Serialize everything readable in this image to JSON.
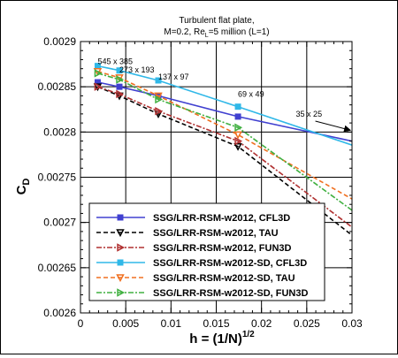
{
  "chart_data": {
    "type": "line",
    "title": "Turbulent flat plate,",
    "subtitle": "M=0.2, Re_L=5 million (L=1)",
    "xlabel": "h = (1/N)^1/2",
    "ylabel": "C_D",
    "xlim": [
      0,
      0.03
    ],
    "ylim": [
      0.0026,
      0.0029
    ],
    "xticks": [
      "0",
      "0.005",
      "0.01",
      "0.015",
      "0.02",
      "0.025",
      "0.03"
    ],
    "yticks": [
      "0.0026",
      "0.00265",
      "0.0027",
      "0.00275",
      "0.0028",
      "0.00285",
      "0.0029"
    ],
    "grid": true,
    "legend_placement": "lower-left",
    "annotations": [
      {
        "text": "545 x 385",
        "x": 0.0019,
        "y": 0.002873
      },
      {
        "text": "273 x 193",
        "x": 0.0043,
        "y": 0.002864
      },
      {
        "text": "137 x 97",
        "x": 0.0086,
        "y": 0.002856
      },
      {
        "text": "69 x 49",
        "x": 0.0174,
        "y": 0.002837
      },
      {
        "text": "35 x 25",
        "x": 0.0238,
        "y": 0.002815,
        "arrow_to": [
          0.0304,
          0.0028
        ]
      }
    ],
    "series": [
      {
        "name": "SSG/LRR-RSM-w2012, CFL3D",
        "color": "#4040d0",
        "line": "solid",
        "marker": "square",
        "x": [
          0.0019,
          0.0043,
          0.0086,
          0.0174,
          0.0346
        ],
        "y": [
          0.002855,
          0.00285,
          0.00284,
          0.002817,
          0.00278
        ]
      },
      {
        "name": "SSG/LRR-RSM-w2012, TAU",
        "color": "#000000",
        "line": "dashed",
        "marker": "triangle-down",
        "x": [
          0.0019,
          0.0043,
          0.0086,
          0.0174,
          0.0346
        ],
        "y": [
          0.00285,
          0.00284,
          0.00282,
          0.002784,
          0.00265
        ]
      },
      {
        "name": "SSG/LRR-RSM-w2012, FUN3D",
        "color": "#b03030",
        "line": "dash-dot",
        "marker": "triangle-right",
        "x": [
          0.0019,
          0.0043,
          0.0086,
          0.0174,
          0.0346
        ],
        "y": [
          0.00285,
          0.002842,
          0.002823,
          0.00279,
          0.00266
        ]
      },
      {
        "name": "SSG/LRR-RSM-w2012-SD, CFL3D",
        "color": "#30b8e8",
        "line": "solid",
        "marker": "square",
        "x": [
          0.0019,
          0.0043,
          0.0086,
          0.0174,
          0.0346
        ],
        "y": [
          0.002873,
          0.002868,
          0.002857,
          0.002828,
          0.00277
        ]
      },
      {
        "name": "SSG/LRR-RSM-w2012-SD, TAU",
        "color": "#f07020",
        "line": "dashed",
        "marker": "triangle-down",
        "x": [
          0.0019,
          0.0043,
          0.0086,
          0.0174,
          0.0346
        ],
        "y": [
          0.002867,
          0.00286,
          0.00284,
          0.002797,
          0.0027
        ]
      },
      {
        "name": "SSG/LRR-RSM-w2012-SD, FUN3D",
        "color": "#40b040",
        "line": "dash-dot",
        "marker": "triangle-right",
        "x": [
          0.0019,
          0.0043,
          0.0086,
          0.0174,
          0.0346
        ],
        "y": [
          0.002865,
          0.002858,
          0.002836,
          0.002805,
          0.00268
        ]
      }
    ]
  }
}
